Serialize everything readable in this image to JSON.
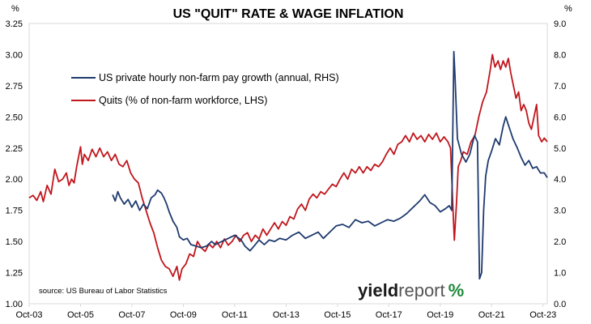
{
  "chart_data": {
    "type": "line",
    "title": "US \"QUIT\" RATE & WAGE INFLATION",
    "ylabel_left": "%",
    "ylabel_right": "%",
    "ylim_left": [
      1.0,
      3.25
    ],
    "ylim_right": [
      0.0,
      9.0
    ],
    "yticks_left": [
      "1.00",
      "1.25",
      "1.50",
      "1.75",
      "2.00",
      "2.25",
      "2.50",
      "2.75",
      "3.00",
      "3.25"
    ],
    "yticks_right": [
      "0.0",
      "1.0",
      "2.0",
      "3.0",
      "4.0",
      "5.0",
      "6.0",
      "7.0",
      "8.0",
      "9.0"
    ],
    "xlim": [
      2003.75,
      2023.917
    ],
    "xticks": [
      "Oct-03",
      "Oct-05",
      "Oct-07",
      "Oct-09",
      "Oct-11",
      "Oct-13",
      "Oct-15",
      "Oct-17",
      "Oct-19",
      "Oct-21",
      "Oct-23"
    ],
    "grid": false,
    "legend_position": "upper-left",
    "series": [
      {
        "name": "US private hourly non-farm pay growth (annual, RHS)",
        "axis": "right",
        "color": "#1f3a6e",
        "points": [
          [
            2007.0,
            3.5
          ],
          [
            2007.1,
            3.3
          ],
          [
            2007.2,
            3.6
          ],
          [
            2007.3,
            3.4
          ],
          [
            2007.45,
            3.2
          ],
          [
            2007.6,
            3.35
          ],
          [
            2007.75,
            3.1
          ],
          [
            2007.9,
            3.3
          ],
          [
            2008.05,
            3.0
          ],
          [
            2008.2,
            3.2
          ],
          [
            2008.35,
            3.05
          ],
          [
            2008.5,
            3.4
          ],
          [
            2008.65,
            3.5
          ],
          [
            2008.75,
            3.65
          ],
          [
            2008.9,
            3.55
          ],
          [
            2009.0,
            3.4
          ],
          [
            2009.1,
            3.2
          ],
          [
            2009.2,
            2.95
          ],
          [
            2009.35,
            2.65
          ],
          [
            2009.5,
            2.45
          ],
          [
            2009.6,
            2.15
          ],
          [
            2009.75,
            2.05
          ],
          [
            2009.9,
            2.1
          ],
          [
            2010.05,
            1.9
          ],
          [
            2010.25,
            1.85
          ],
          [
            2010.45,
            1.8
          ],
          [
            2010.65,
            1.85
          ],
          [
            2010.85,
            2.0
          ],
          [
            2011.0,
            1.9
          ],
          [
            2011.25,
            2.0
          ],
          [
            2011.5,
            2.1
          ],
          [
            2011.75,
            2.2
          ],
          [
            2012.0,
            2.05
          ],
          [
            2012.15,
            1.85
          ],
          [
            2012.35,
            1.7
          ],
          [
            2012.5,
            1.85
          ],
          [
            2012.7,
            2.05
          ],
          [
            2012.9,
            1.9
          ],
          [
            2013.1,
            2.05
          ],
          [
            2013.3,
            2.0
          ],
          [
            2013.5,
            2.1
          ],
          [
            2013.75,
            2.05
          ],
          [
            2014.0,
            2.2
          ],
          [
            2014.25,
            2.3
          ],
          [
            2014.5,
            2.1
          ],
          [
            2014.75,
            2.2
          ],
          [
            2015.0,
            2.3
          ],
          [
            2015.2,
            2.1
          ],
          [
            2015.45,
            2.3
          ],
          [
            2015.7,
            2.5
          ],
          [
            2015.95,
            2.55
          ],
          [
            2016.2,
            2.45
          ],
          [
            2016.45,
            2.7
          ],
          [
            2016.7,
            2.6
          ],
          [
            2016.95,
            2.65
          ],
          [
            2017.2,
            2.5
          ],
          [
            2017.45,
            2.6
          ],
          [
            2017.7,
            2.7
          ],
          [
            2017.95,
            2.65
          ],
          [
            2018.2,
            2.75
          ],
          [
            2018.45,
            2.9
          ],
          [
            2018.7,
            3.1
          ],
          [
            2018.95,
            3.3
          ],
          [
            2019.15,
            3.5
          ],
          [
            2019.35,
            3.25
          ],
          [
            2019.55,
            3.15
          ],
          [
            2019.75,
            2.95
          ],
          [
            2019.95,
            3.05
          ],
          [
            2020.1,
            3.15
          ],
          [
            2020.2,
            3.0
          ],
          [
            2020.28,
            8.1
          ],
          [
            2020.33,
            7.2
          ],
          [
            2020.42,
            5.3
          ],
          [
            2020.58,
            4.8
          ],
          [
            2020.75,
            4.55
          ],
          [
            2020.9,
            4.8
          ],
          [
            2021.08,
            5.4
          ],
          [
            2021.2,
            5.2
          ],
          [
            2021.28,
            0.8
          ],
          [
            2021.36,
            1.0
          ],
          [
            2021.44,
            3.0
          ],
          [
            2021.52,
            4.1
          ],
          [
            2021.62,
            4.6
          ],
          [
            2021.75,
            4.9
          ],
          [
            2021.9,
            5.3
          ],
          [
            2022.05,
            5.1
          ],
          [
            2022.2,
            5.7
          ],
          [
            2022.3,
            6.0
          ],
          [
            2022.42,
            5.7
          ],
          [
            2022.58,
            5.3
          ],
          [
            2022.75,
            5.0
          ],
          [
            2022.9,
            4.7
          ],
          [
            2023.05,
            4.45
          ],
          [
            2023.2,
            4.6
          ],
          [
            2023.35,
            4.35
          ],
          [
            2023.5,
            4.4
          ],
          [
            2023.65,
            4.2
          ],
          [
            2023.8,
            4.2
          ],
          [
            2023.917,
            4.05
          ]
        ]
      },
      {
        "name": "Quits (% of non-farm workforce, LHS)",
        "axis": "left",
        "color": "#c0161c",
        "points": [
          [
            2003.75,
            1.85
          ],
          [
            2003.9,
            1.87
          ],
          [
            2004.05,
            1.83
          ],
          [
            2004.2,
            1.9
          ],
          [
            2004.3,
            1.82
          ],
          [
            2004.45,
            1.95
          ],
          [
            2004.6,
            1.88
          ],
          [
            2004.75,
            2.08
          ],
          [
            2004.9,
            1.98
          ],
          [
            2005.05,
            2.0
          ],
          [
            2005.2,
            2.05
          ],
          [
            2005.3,
            1.95
          ],
          [
            2005.4,
            2.0
          ],
          [
            2005.5,
            1.97
          ],
          [
            2005.6,
            2.1
          ],
          [
            2005.75,
            2.26
          ],
          [
            2005.82,
            2.12
          ],
          [
            2005.9,
            2.2
          ],
          [
            2006.05,
            2.15
          ],
          [
            2006.2,
            2.24
          ],
          [
            2006.35,
            2.18
          ],
          [
            2006.5,
            2.25
          ],
          [
            2006.65,
            2.18
          ],
          [
            2006.8,
            2.22
          ],
          [
            2006.95,
            2.15
          ],
          [
            2007.1,
            2.2
          ],
          [
            2007.25,
            2.12
          ],
          [
            2007.4,
            2.1
          ],
          [
            2007.55,
            2.15
          ],
          [
            2007.7,
            2.05
          ],
          [
            2007.85,
            2.0
          ],
          [
            2008.0,
            1.97
          ],
          [
            2008.15,
            1.85
          ],
          [
            2008.3,
            1.75
          ],
          [
            2008.45,
            1.65
          ],
          [
            2008.6,
            1.57
          ],
          [
            2008.75,
            1.45
          ],
          [
            2008.9,
            1.35
          ],
          [
            2009.05,
            1.3
          ],
          [
            2009.2,
            1.28
          ],
          [
            2009.35,
            1.22
          ],
          [
            2009.5,
            1.3
          ],
          [
            2009.6,
            1.19
          ],
          [
            2009.7,
            1.28
          ],
          [
            2009.85,
            1.32
          ],
          [
            2010.0,
            1.4
          ],
          [
            2010.15,
            1.38
          ],
          [
            2010.3,
            1.5
          ],
          [
            2010.45,
            1.45
          ],
          [
            2010.6,
            1.42
          ],
          [
            2010.75,
            1.48
          ],
          [
            2010.9,
            1.45
          ],
          [
            2011.05,
            1.5
          ],
          [
            2011.2,
            1.45
          ],
          [
            2011.35,
            1.52
          ],
          [
            2011.5,
            1.47
          ],
          [
            2011.65,
            1.5
          ],
          [
            2011.8,
            1.55
          ],
          [
            2011.95,
            1.5
          ],
          [
            2012.1,
            1.55
          ],
          [
            2012.25,
            1.57
          ],
          [
            2012.4,
            1.5
          ],
          [
            2012.55,
            1.55
          ],
          [
            2012.7,
            1.52
          ],
          [
            2012.85,
            1.6
          ],
          [
            2013.0,
            1.55
          ],
          [
            2013.15,
            1.6
          ],
          [
            2013.3,
            1.65
          ],
          [
            2013.45,
            1.6
          ],
          [
            2013.6,
            1.66
          ],
          [
            2013.75,
            1.63
          ],
          [
            2013.9,
            1.7
          ],
          [
            2014.05,
            1.68
          ],
          [
            2014.2,
            1.76
          ],
          [
            2014.35,
            1.8
          ],
          [
            2014.5,
            1.75
          ],
          [
            2014.65,
            1.84
          ],
          [
            2014.8,
            1.88
          ],
          [
            2014.95,
            1.85
          ],
          [
            2015.1,
            1.9
          ],
          [
            2015.25,
            1.88
          ],
          [
            2015.4,
            1.92
          ],
          [
            2015.55,
            1.96
          ],
          [
            2015.7,
            1.94
          ],
          [
            2015.85,
            2.0
          ],
          [
            2016.0,
            2.05
          ],
          [
            2016.15,
            2.0
          ],
          [
            2016.3,
            2.08
          ],
          [
            2016.45,
            2.05
          ],
          [
            2016.6,
            2.1
          ],
          [
            2016.75,
            2.05
          ],
          [
            2016.9,
            2.1
          ],
          [
            2017.05,
            2.07
          ],
          [
            2017.2,
            2.12
          ],
          [
            2017.35,
            2.1
          ],
          [
            2017.5,
            2.14
          ],
          [
            2017.65,
            2.2
          ],
          [
            2017.8,
            2.25
          ],
          [
            2017.95,
            2.2
          ],
          [
            2018.1,
            2.28
          ],
          [
            2018.25,
            2.3
          ],
          [
            2018.4,
            2.35
          ],
          [
            2018.55,
            2.3
          ],
          [
            2018.7,
            2.37
          ],
          [
            2018.85,
            2.32
          ],
          [
            2019.0,
            2.35
          ],
          [
            2019.15,
            2.3
          ],
          [
            2019.3,
            2.36
          ],
          [
            2019.45,
            2.32
          ],
          [
            2019.6,
            2.37
          ],
          [
            2019.75,
            2.3
          ],
          [
            2019.9,
            2.34
          ],
          [
            2020.05,
            2.3
          ],
          [
            2020.15,
            2.25
          ],
          [
            2020.25,
            1.75
          ],
          [
            2020.3,
            1.51
          ],
          [
            2020.38,
            1.8
          ],
          [
            2020.45,
            2.1
          ],
          [
            2020.55,
            2.15
          ],
          [
            2020.65,
            2.22
          ],
          [
            2020.8,
            2.2
          ],
          [
            2020.95,
            2.3
          ],
          [
            2021.1,
            2.35
          ],
          [
            2021.25,
            2.5
          ],
          [
            2021.4,
            2.62
          ],
          [
            2021.55,
            2.7
          ],
          [
            2021.7,
            2.88
          ],
          [
            2021.78,
            3.0
          ],
          [
            2021.88,
            2.9
          ],
          [
            2022.0,
            2.95
          ],
          [
            2022.1,
            2.88
          ],
          [
            2022.2,
            2.95
          ],
          [
            2022.3,
            2.9
          ],
          [
            2022.4,
            2.97
          ],
          [
            2022.5,
            2.85
          ],
          [
            2022.6,
            2.75
          ],
          [
            2022.7,
            2.65
          ],
          [
            2022.8,
            2.7
          ],
          [
            2022.9,
            2.55
          ],
          [
            2023.0,
            2.6
          ],
          [
            2023.1,
            2.55
          ],
          [
            2023.2,
            2.45
          ],
          [
            2023.3,
            2.4
          ],
          [
            2023.4,
            2.5
          ],
          [
            2023.5,
            2.6
          ],
          [
            2023.58,
            2.35
          ],
          [
            2023.7,
            2.3
          ],
          [
            2023.8,
            2.33
          ],
          [
            2023.917,
            2.3
          ]
        ]
      }
    ],
    "annotations": [
      "source: US Bureau of Labor Statistics"
    ]
  },
  "logo": {
    "part1": "yield",
    "part2": "report",
    "part3": "%"
  }
}
